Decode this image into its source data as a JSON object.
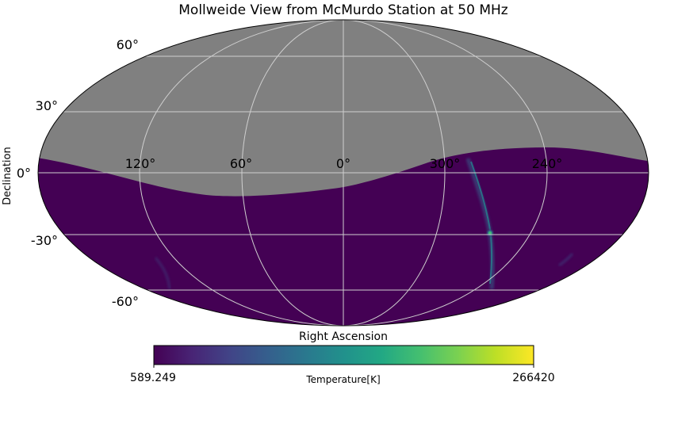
{
  "title": "Mollweide View from McMurdo Station at 50 MHz",
  "axes": {
    "xlabel": "Right Ascension",
    "ylabel": "Declination",
    "lon_ticks": [
      "120°",
      "60°",
      "0°",
      "300°",
      "240°"
    ],
    "lat_ticks": [
      "60°",
      "30°",
      "0°",
      "-30°",
      "-60°"
    ]
  },
  "colorbar": {
    "min_label": "589.249",
    "max_label": "266420",
    "label": "Temperature[K]",
    "colormap": "viridis"
  },
  "colors": {
    "masked_sky": "#808080",
    "sky_background": "#440154",
    "graticule": "#d0d0d0",
    "bright_source": "#3fbc73"
  }
}
